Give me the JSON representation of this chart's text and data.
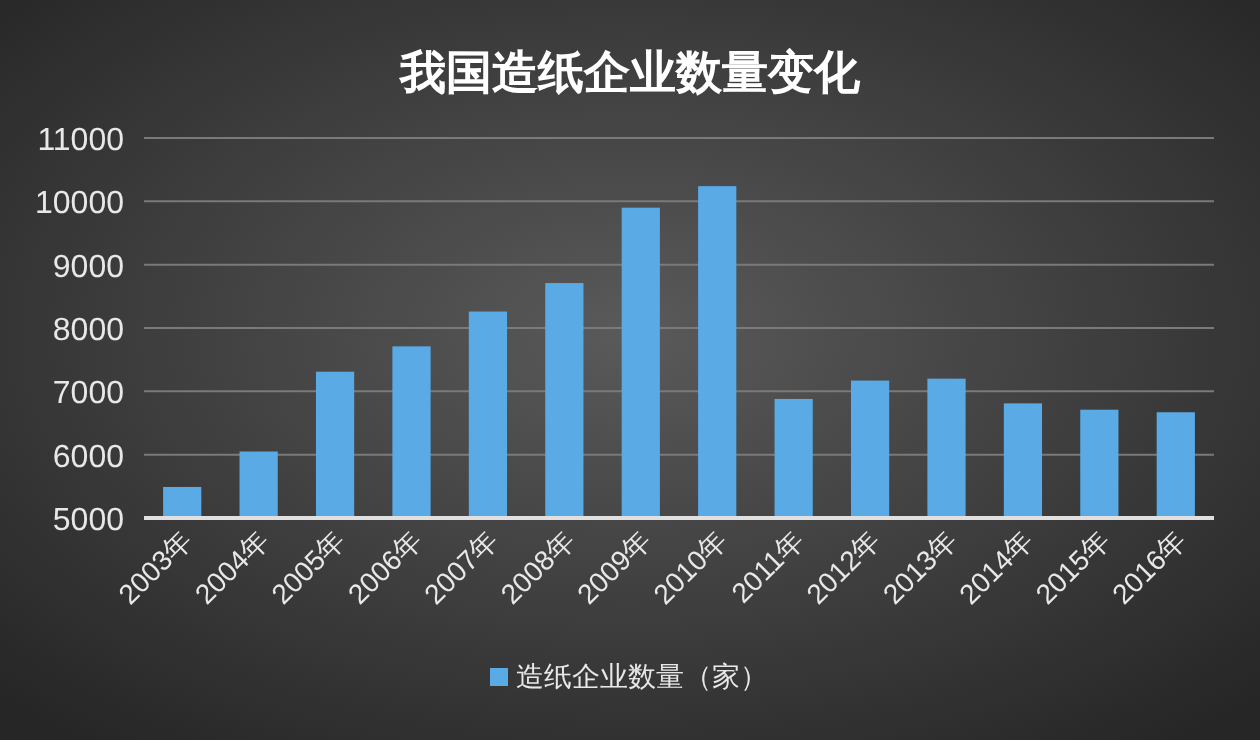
{
  "chart_data": {
    "type": "bar",
    "title": "我国造纸企业数量变化",
    "categories": [
      "2003年",
      "2004年",
      "2005年",
      "2006年",
      "2007年",
      "2008年",
      "2009年",
      "2010年",
      "2011年",
      "2012年",
      "2013年",
      "2014年",
      "2015年",
      "2016年"
    ],
    "series": [
      {
        "name": "造纸企业数量（家）",
        "color": "#5aaae6",
        "values": [
          5490,
          6050,
          7310,
          7710,
          8260,
          8710,
          9900,
          10240,
          6880,
          7170,
          7200,
          6810,
          6710,
          6670
        ]
      }
    ],
    "ylim": [
      5000,
      11000
    ],
    "yticks": [
      5000,
      6000,
      7000,
      8000,
      9000,
      10000,
      11000
    ],
    "grid": "y",
    "legend": "bottom"
  }
}
